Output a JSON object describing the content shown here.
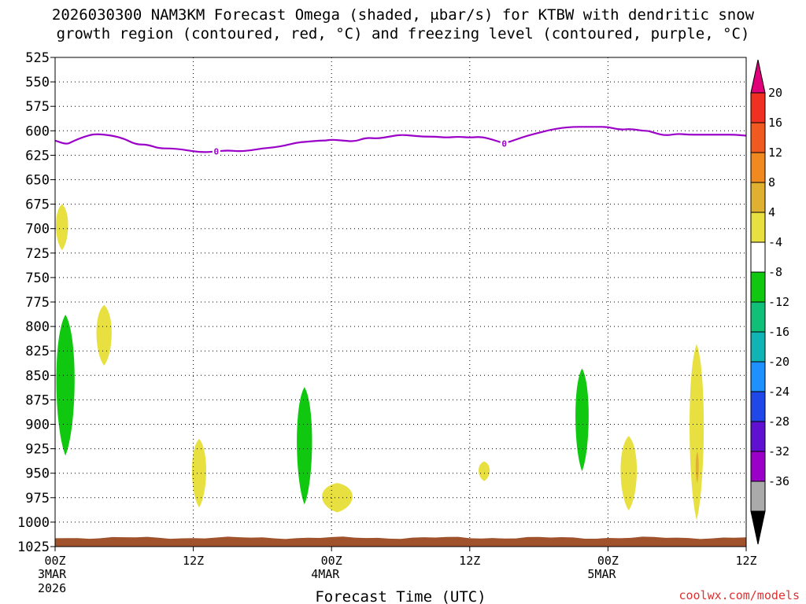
{
  "title": {
    "line1": "2026030300 NAM3KM Forecast Omega (shaded, μbar/s) for KTBW with dendritic snow",
    "line2": "growth region (contoured, red, °C) and freezing level (contoured, purple, °C)"
  },
  "credit": "coolwx.com/models",
  "chart_data": {
    "type": "heatmap",
    "xlabel": "Forecast Time (UTC)",
    "ylabel": "",
    "x_range_hours": [
      0,
      60
    ],
    "y_range_hpa": [
      525,
      1025
    ],
    "y_scale": "linear-pressure-inverted",
    "grid": true,
    "y_ticks": [
      525,
      550,
      575,
      600,
      625,
      650,
      675,
      700,
      725,
      750,
      775,
      800,
      825,
      850,
      875,
      900,
      925,
      950,
      975,
      1000,
      1025
    ],
    "x_ticks": [
      {
        "hour": 0,
        "label": "00Z",
        "sub1": "3MAR",
        "sub2": "2026"
      },
      {
        "hour": 12,
        "label": "12Z",
        "sub1": "",
        "sub2": ""
      },
      {
        "hour": 24,
        "label": "00Z",
        "sub1": "4MAR",
        "sub2": ""
      },
      {
        "hour": 36,
        "label": "12Z",
        "sub1": "",
        "sub2": ""
      },
      {
        "hour": 48,
        "label": "00Z",
        "sub1": "5MAR",
        "sub2": ""
      },
      {
        "hour": 60,
        "label": "12Z",
        "sub1": "",
        "sub2": ""
      }
    ],
    "colorbar": {
      "label_values": [
        20,
        16,
        12,
        8,
        4,
        -4,
        -8,
        -12,
        -16,
        -20,
        -24,
        -28,
        -32,
        -36
      ],
      "colors": [
        "#e0007a",
        "#f03020",
        "#f05a20",
        "#f08a20",
        "#e0b030",
        "#e8e040",
        "#ffffff",
        "#10c810",
        "#10c078",
        "#10b4b4",
        "#1e90ff",
        "#2048e8",
        "#6010d0",
        "#9a00c8",
        "#aaaaaa",
        "#000000"
      ]
    },
    "freezing_level": {
      "contour_label": "0",
      "color": "#9a00c8",
      "hours": [
        0,
        1,
        1.5,
        2.5,
        3.5,
        5,
        6,
        7,
        8,
        9,
        10,
        11,
        12,
        13,
        14,
        15,
        16,
        17,
        18,
        19,
        20,
        21,
        22,
        23,
        23.5,
        24,
        25,
        26,
        27,
        28,
        29,
        30,
        31,
        32,
        33,
        34,
        35,
        36,
        37,
        38,
        39,
        40,
        41,
        42,
        43,
        44,
        45,
        46,
        47,
        48,
        49,
        50,
        51,
        51.5,
        52,
        53,
        54,
        55,
        56,
        57,
        58,
        59,
        60
      ],
      "pressure": [
        610,
        614,
        611,
        606,
        603,
        605,
        608,
        614,
        614,
        618,
        618,
        619,
        621,
        622,
        621,
        620,
        621,
        620,
        618,
        617,
        615,
        612,
        611,
        610,
        610,
        609,
        610,
        611,
        607,
        608,
        606,
        604,
        605,
        606,
        606,
        607,
        606,
        607,
        606,
        609,
        613,
        609,
        605,
        602,
        599,
        597,
        596,
        596,
        596,
        596,
        599,
        598,
        600,
        600,
        602,
        605,
        603,
        604,
        604,
        604,
        604,
        604,
        605
      ]
    },
    "omega_regions": [
      {
        "value": 5,
        "color": "#e8e040",
        "hour": [
          0.0,
          1.2
        ],
        "pressure": [
          675,
          722
        ]
      },
      {
        "value": -6,
        "color": "#10c810",
        "hour": [
          0.0,
          1.8
        ],
        "pressure": [
          788,
          932
        ]
      },
      {
        "value": 5,
        "color": "#e8e040",
        "hour": [
          3.5,
          5.0
        ],
        "pressure": [
          778,
          840
        ]
      },
      {
        "value": 5,
        "color": "#e8e040",
        "hour": [
          11.8,
          13.2
        ],
        "pressure": [
          915,
          985
        ]
      },
      {
        "value": -6,
        "color": "#10c810",
        "hour": [
          20.9,
          22.4
        ],
        "pressure": [
          862,
          982
        ]
      },
      {
        "value": 5,
        "color": "#e8e040",
        "hour": [
          23.0,
          26.0
        ],
        "pressure": [
          960,
          990
        ]
      },
      {
        "value": 5,
        "color": "#e8e040",
        "hour": [
          36.7,
          37.8
        ],
        "pressure": [
          938,
          958
        ]
      },
      {
        "value": -6,
        "color": "#10c810",
        "hour": [
          45.1,
          46.4
        ],
        "pressure": [
          843,
          948
        ]
      },
      {
        "value": 5,
        "color": "#e8e040",
        "hour": [
          49.0,
          50.6
        ],
        "pressure": [
          912,
          988
        ]
      },
      {
        "value": 5,
        "color": "#e8e040",
        "hour": [
          55.0,
          56.4
        ],
        "pressure": [
          818,
          998
        ]
      },
      {
        "value": 9,
        "color": "#e0b030",
        "hour": [
          55.6,
          55.9
        ],
        "pressure": [
          928,
          960
        ]
      }
    ],
    "terrain": {
      "color": "#a0522d",
      "pressure_top": 1016,
      "pressure_bottom": 1025
    }
  }
}
